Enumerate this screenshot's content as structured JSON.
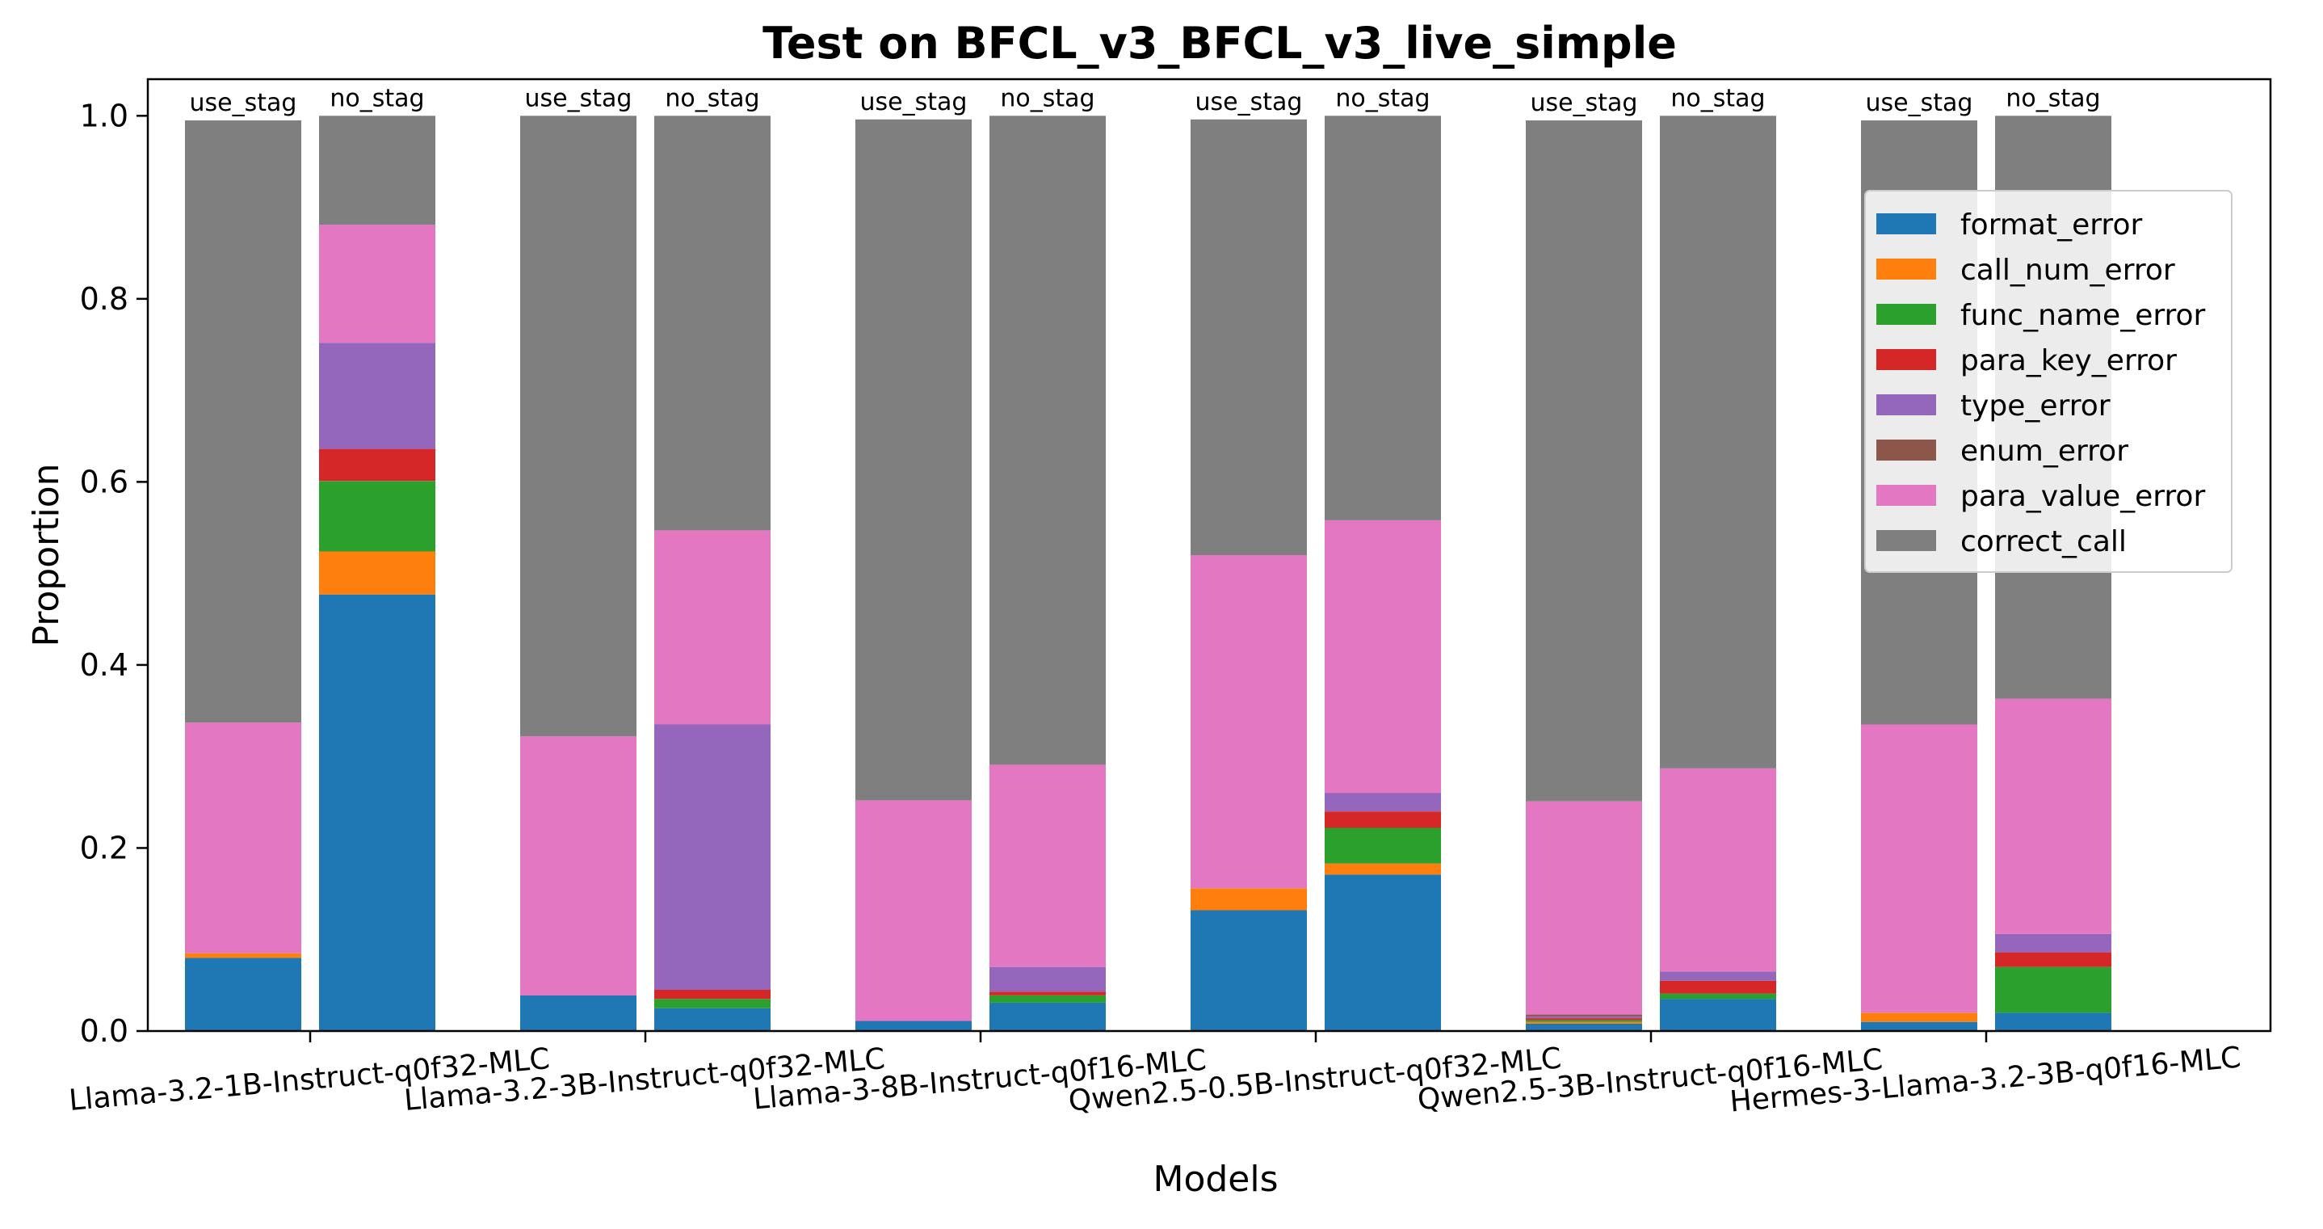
{
  "chart_data": {
    "type": "bar",
    "stacked": true,
    "title": "Test on BFCL_v3_BFCL_v3_live_simple",
    "xlabel": "Models",
    "ylabel": "Proportion",
    "ylim": [
      0,
      1.04
    ],
    "yticks": [
      "0.0",
      "0.2",
      "0.4",
      "0.6",
      "0.8",
      "1.0"
    ],
    "grid": false,
    "legend_position": "upper right",
    "categories": [
      "Llama-3.2-1B-Instruct-q0f32-MLC",
      "Llama-3.2-3B-Instruct-q0f32-MLC",
      "Llama-3-8B-Instruct-q0f16-MLC",
      "Qwen2.5-0.5B-Instruct-q0f32-MLC",
      "Qwen2.5-3B-Instruct-q0f16-MLC",
      "Hermes-3-Llama-3.2-3B-q0f16-MLC"
    ],
    "bar_groups": [
      "use_stag",
      "no_stag"
    ],
    "series": [
      {
        "name": "format_error",
        "color": "#1f77b4",
        "use_stag": [
          0.08,
          0.039,
          0.011,
          0.132,
          0.008,
          0.01
        ],
        "no_stag": [
          0.477,
          0.025,
          0.031,
          0.171,
          0.035,
          0.02
        ]
      },
      {
        "name": "call_num_error",
        "color": "#ff7f0e",
        "use_stag": [
          0.005,
          0.0,
          0.0,
          0.024,
          0.002,
          0.01
        ],
        "no_stag": [
          0.047,
          0.0,
          0.0,
          0.012,
          0.0,
          0.0
        ]
      },
      {
        "name": "func_name_error",
        "color": "#2ca02c",
        "use_stag": [
          0.0,
          0.0,
          0.0,
          0.0,
          0.002,
          0.0
        ],
        "no_stag": [
          0.077,
          0.01,
          0.008,
          0.039,
          0.006,
          0.05
        ]
      },
      {
        "name": "para_key_error",
        "color": "#d62728",
        "use_stag": [
          0.0,
          0.0,
          0.0,
          0.0,
          0.002,
          0.0
        ],
        "no_stag": [
          0.035,
          0.01,
          0.004,
          0.018,
          0.014,
          0.016
        ]
      },
      {
        "name": "type_error",
        "color": "#9467bd",
        "use_stag": [
          0.0,
          0.0,
          0.0,
          0.0,
          0.002,
          0.0
        ],
        "no_stag": [
          0.116,
          0.29,
          0.027,
          0.02,
          0.01,
          0.02
        ]
      },
      {
        "name": "enum_error",
        "color": "#8c564b",
        "use_stag": [
          0.0,
          0.0,
          0.0,
          0.0,
          0.002,
          0.0
        ],
        "no_stag": [
          0.0,
          0.0,
          0.0,
          0.0,
          0.0,
          0.0
        ]
      },
      {
        "name": "para_value_error",
        "color": "#e377c2",
        "use_stag": [
          0.252,
          0.283,
          0.241,
          0.364,
          0.233,
          0.315
        ],
        "no_stag": [
          0.129,
          0.212,
          0.221,
          0.298,
          0.222,
          0.257
        ]
      },
      {
        "name": "correct_call",
        "color": "#7f7f7f",
        "use_stag": [
          0.658,
          0.678,
          0.744,
          0.476,
          0.744,
          0.66
        ],
        "no_stag": [
          0.119,
          0.453,
          0.709,
          0.442,
          0.713,
          0.637
        ]
      }
    ]
  }
}
